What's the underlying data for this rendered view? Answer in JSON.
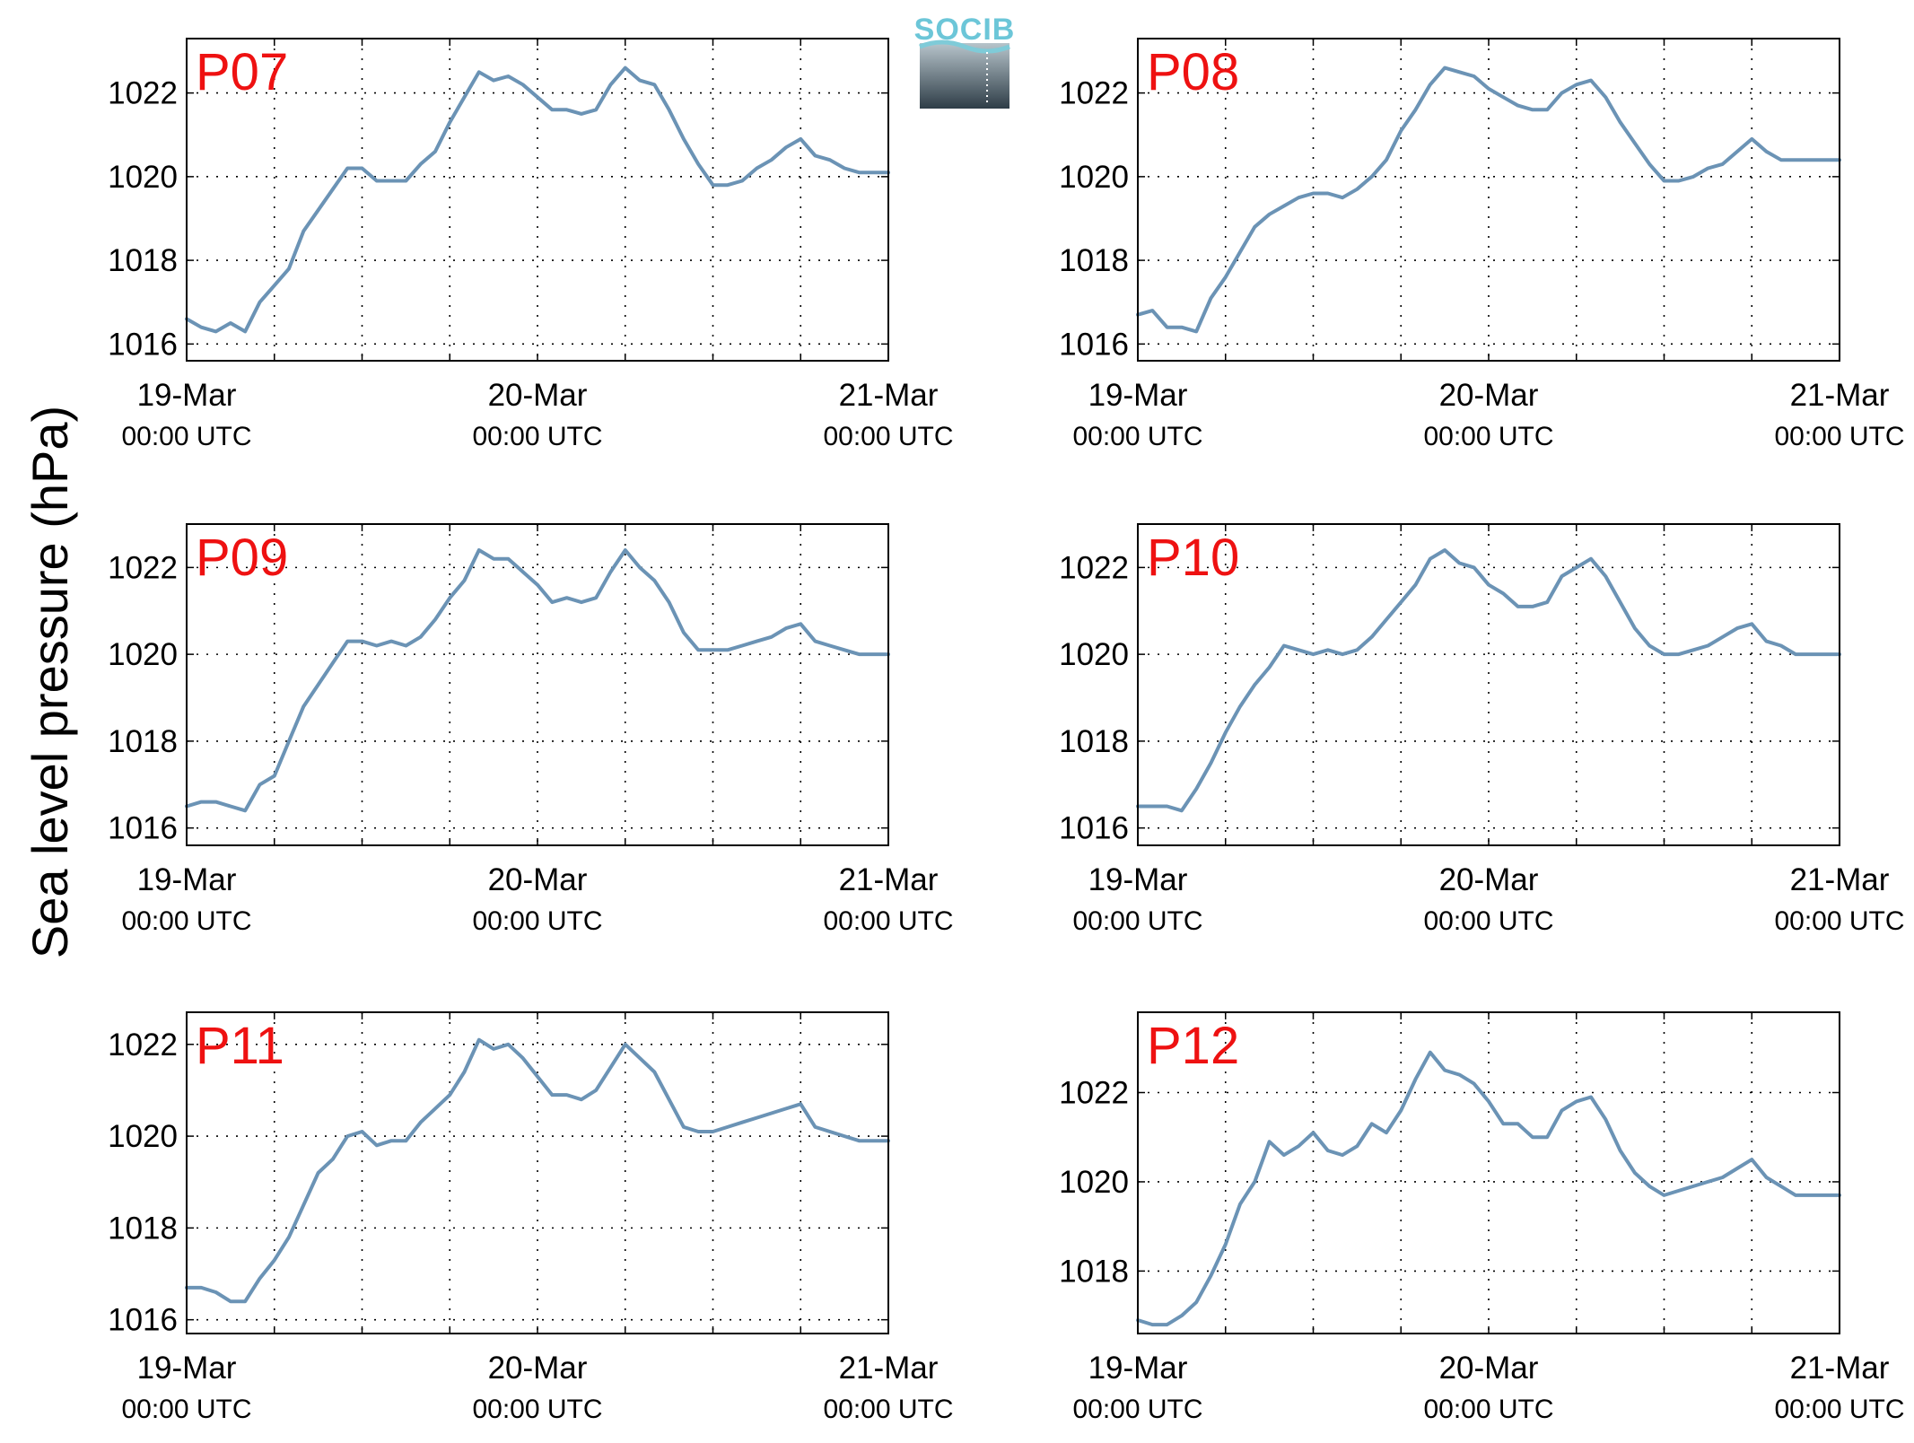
{
  "figure": {
    "ylabel": "Sea level pressure (hPa)",
    "logo_text": "SOCIB",
    "line_color": "#6b93b5",
    "panel_label_color": "#ee1111",
    "xticks": [
      {
        "value": 0,
        "label": "19-Mar",
        "sublabel": "00:00 UTC"
      },
      {
        "value": 24,
        "label": "20-Mar",
        "sublabel": "00:00 UTC"
      },
      {
        "value": 48,
        "label": "21-Mar",
        "sublabel": "00:00 UTC"
      }
    ]
  },
  "chart_data": [
    {
      "type": "line",
      "title": "P07",
      "xlabel": "",
      "ylabel": "Sea level pressure (hPa)",
      "xlim": [
        0,
        48
      ],
      "ylim": [
        1015.6,
        1023.3
      ],
      "yticks": [
        1016,
        1018,
        1020,
        1022
      ],
      "grid": true,
      "x": [
        0,
        1,
        2,
        3,
        4,
        5,
        6,
        7,
        8,
        9,
        10,
        11,
        12,
        13,
        14,
        15,
        16,
        17,
        18,
        19,
        20,
        21,
        22,
        23,
        24,
        25,
        26,
        27,
        28,
        29,
        30,
        31,
        32,
        33,
        34,
        35,
        36,
        37,
        38,
        39,
        40,
        41,
        42,
        43,
        44,
        45,
        46,
        47,
        48
      ],
      "values": [
        1016.6,
        1016.4,
        1016.3,
        1016.5,
        1016.3,
        1017.0,
        1017.4,
        1017.8,
        1018.7,
        1019.2,
        1019.7,
        1020.2,
        1020.2,
        1019.9,
        1019.9,
        1019.9,
        1020.3,
        1020.6,
        1021.3,
        1021.9,
        1022.5,
        1022.3,
        1022.4,
        1022.2,
        1021.9,
        1021.6,
        1021.6,
        1021.5,
        1021.6,
        1022.2,
        1022.6,
        1022.3,
        1022.2,
        1021.6,
        1020.9,
        1020.3,
        1019.8,
        1019.8,
        1019.9,
        1020.2,
        1020.4,
        1020.7,
        1020.9,
        1020.5,
        1020.4,
        1020.2,
        1020.1,
        1020.1,
        1020.1
      ]
    },
    {
      "type": "line",
      "title": "P08",
      "xlabel": "",
      "ylabel": "Sea level pressure (hPa)",
      "xlim": [
        0,
        48
      ],
      "ylim": [
        1015.6,
        1023.3
      ],
      "yticks": [
        1016,
        1018,
        1020,
        1022
      ],
      "grid": true,
      "x": [
        0,
        1,
        2,
        3,
        4,
        5,
        6,
        7,
        8,
        9,
        10,
        11,
        12,
        13,
        14,
        15,
        16,
        17,
        18,
        19,
        20,
        21,
        22,
        23,
        24,
        25,
        26,
        27,
        28,
        29,
        30,
        31,
        32,
        33,
        34,
        35,
        36,
        37,
        38,
        39,
        40,
        41,
        42,
        43,
        44,
        45,
        46,
        47,
        48
      ],
      "values": [
        1016.7,
        1016.8,
        1016.4,
        1016.4,
        1016.3,
        1017.1,
        1017.6,
        1018.2,
        1018.8,
        1019.1,
        1019.3,
        1019.5,
        1019.6,
        1019.6,
        1019.5,
        1019.7,
        1020.0,
        1020.4,
        1021.1,
        1021.6,
        1022.2,
        1022.6,
        1022.5,
        1022.4,
        1022.1,
        1021.9,
        1021.7,
        1021.6,
        1021.6,
        1022.0,
        1022.2,
        1022.3,
        1021.9,
        1021.3,
        1020.8,
        1020.3,
        1019.9,
        1019.9,
        1020.0,
        1020.2,
        1020.3,
        1020.6,
        1020.9,
        1020.6,
        1020.4,
        1020.4,
        1020.4,
        1020.4,
        1020.4
      ]
    },
    {
      "type": "line",
      "title": "P09",
      "xlabel": "",
      "ylabel": "Sea level pressure (hPa)",
      "xlim": [
        0,
        48
      ],
      "ylim": [
        1015.6,
        1023.0
      ],
      "yticks": [
        1016,
        1018,
        1020,
        1022
      ],
      "grid": true,
      "x": [
        0,
        1,
        2,
        3,
        4,
        5,
        6,
        7,
        8,
        9,
        10,
        11,
        12,
        13,
        14,
        15,
        16,
        17,
        18,
        19,
        20,
        21,
        22,
        23,
        24,
        25,
        26,
        27,
        28,
        29,
        30,
        31,
        32,
        33,
        34,
        35,
        36,
        37,
        38,
        39,
        40,
        41,
        42,
        43,
        44,
        45,
        46,
        47,
        48
      ],
      "values": [
        1016.5,
        1016.6,
        1016.6,
        1016.5,
        1016.4,
        1017.0,
        1017.2,
        1018.0,
        1018.8,
        1019.3,
        1019.8,
        1020.3,
        1020.3,
        1020.2,
        1020.3,
        1020.2,
        1020.4,
        1020.8,
        1021.3,
        1021.7,
        1022.4,
        1022.2,
        1022.2,
        1021.9,
        1021.6,
        1021.2,
        1021.3,
        1021.2,
        1021.3,
        1021.9,
        1022.4,
        1022.0,
        1021.7,
        1021.2,
        1020.5,
        1020.1,
        1020.1,
        1020.1,
        1020.2,
        1020.3,
        1020.4,
        1020.6,
        1020.7,
        1020.3,
        1020.2,
        1020.1,
        1020.0,
        1020.0,
        1020.0
      ]
    },
    {
      "type": "line",
      "title": "P10",
      "xlabel": "",
      "ylabel": "Sea level pressure (hPa)",
      "xlim": [
        0,
        48
      ],
      "ylim": [
        1015.6,
        1023.0
      ],
      "yticks": [
        1016,
        1018,
        1020,
        1022
      ],
      "grid": true,
      "x": [
        0,
        1,
        2,
        3,
        4,
        5,
        6,
        7,
        8,
        9,
        10,
        11,
        12,
        13,
        14,
        15,
        16,
        17,
        18,
        19,
        20,
        21,
        22,
        23,
        24,
        25,
        26,
        27,
        28,
        29,
        30,
        31,
        32,
        33,
        34,
        35,
        36,
        37,
        38,
        39,
        40,
        41,
        42,
        43,
        44,
        45,
        46,
        47,
        48
      ],
      "values": [
        1016.5,
        1016.5,
        1016.5,
        1016.4,
        1016.9,
        1017.5,
        1018.2,
        1018.8,
        1019.3,
        1019.7,
        1020.2,
        1020.1,
        1020.0,
        1020.1,
        1020.0,
        1020.1,
        1020.4,
        1020.8,
        1021.2,
        1021.6,
        1022.2,
        1022.4,
        1022.1,
        1022.0,
        1021.6,
        1021.4,
        1021.1,
        1021.1,
        1021.2,
        1021.8,
        1022.0,
        1022.2,
        1021.8,
        1021.2,
        1020.6,
        1020.2,
        1020.0,
        1020.0,
        1020.1,
        1020.2,
        1020.4,
        1020.6,
        1020.7,
        1020.3,
        1020.2,
        1020.0,
        1020.0,
        1020.0,
        1020.0
      ]
    },
    {
      "type": "line",
      "title": "P11",
      "xlabel": "",
      "ylabel": "Sea level pressure (hPa)",
      "xlim": [
        0,
        48
      ],
      "ylim": [
        1015.7,
        1022.7
      ],
      "yticks": [
        1016,
        1018,
        1020,
        1022
      ],
      "grid": true,
      "x": [
        0,
        1,
        2,
        3,
        4,
        5,
        6,
        7,
        8,
        9,
        10,
        11,
        12,
        13,
        14,
        15,
        16,
        17,
        18,
        19,
        20,
        21,
        22,
        23,
        24,
        25,
        26,
        27,
        28,
        29,
        30,
        31,
        32,
        33,
        34,
        35,
        36,
        37,
        38,
        39,
        40,
        41,
        42,
        43,
        44,
        45,
        46,
        47,
        48
      ],
      "values": [
        1016.7,
        1016.7,
        1016.6,
        1016.4,
        1016.4,
        1016.9,
        1017.3,
        1017.8,
        1018.5,
        1019.2,
        1019.5,
        1020.0,
        1020.1,
        1019.8,
        1019.9,
        1019.9,
        1020.3,
        1020.6,
        1020.9,
        1021.4,
        1022.1,
        1021.9,
        1022.0,
        1021.7,
        1021.3,
        1020.9,
        1020.9,
        1020.8,
        1021.0,
        1021.5,
        1022.0,
        1021.7,
        1021.4,
        1020.8,
        1020.2,
        1020.1,
        1020.1,
        1020.2,
        1020.3,
        1020.4,
        1020.5,
        1020.6,
        1020.7,
        1020.2,
        1020.1,
        1020.0,
        1019.9,
        1019.9,
        1019.9
      ]
    },
    {
      "type": "line",
      "title": "P12",
      "xlabel": "",
      "ylabel": "Sea level pressure (hPa)",
      "xlim": [
        0,
        48
      ],
      "ylim": [
        1016.6,
        1023.8
      ],
      "yticks": [
        1018,
        1020,
        1022
      ],
      "grid": true,
      "x": [
        0,
        1,
        2,
        3,
        4,
        5,
        6,
        7,
        8,
        9,
        10,
        11,
        12,
        13,
        14,
        15,
        16,
        17,
        18,
        19,
        20,
        21,
        22,
        23,
        24,
        25,
        26,
        27,
        28,
        29,
        30,
        31,
        32,
        33,
        34,
        35,
        36,
        37,
        38,
        39,
        40,
        41,
        42,
        43,
        44,
        45,
        46,
        47,
        48
      ],
      "values": [
        1016.9,
        1016.8,
        1016.8,
        1017.0,
        1017.3,
        1017.9,
        1018.6,
        1019.5,
        1020.0,
        1020.9,
        1020.6,
        1020.8,
        1021.1,
        1020.7,
        1020.6,
        1020.8,
        1021.3,
        1021.1,
        1021.6,
        1022.3,
        1022.9,
        1022.5,
        1022.4,
        1022.2,
        1021.8,
        1021.3,
        1021.3,
        1021.0,
        1021.0,
        1021.6,
        1021.8,
        1021.9,
        1021.4,
        1020.7,
        1020.2,
        1019.9,
        1019.7,
        1019.8,
        1019.9,
        1020.0,
        1020.1,
        1020.3,
        1020.5,
        1020.1,
        1019.9,
        1019.7,
        1019.7,
        1019.7,
        1019.7
      ]
    }
  ]
}
